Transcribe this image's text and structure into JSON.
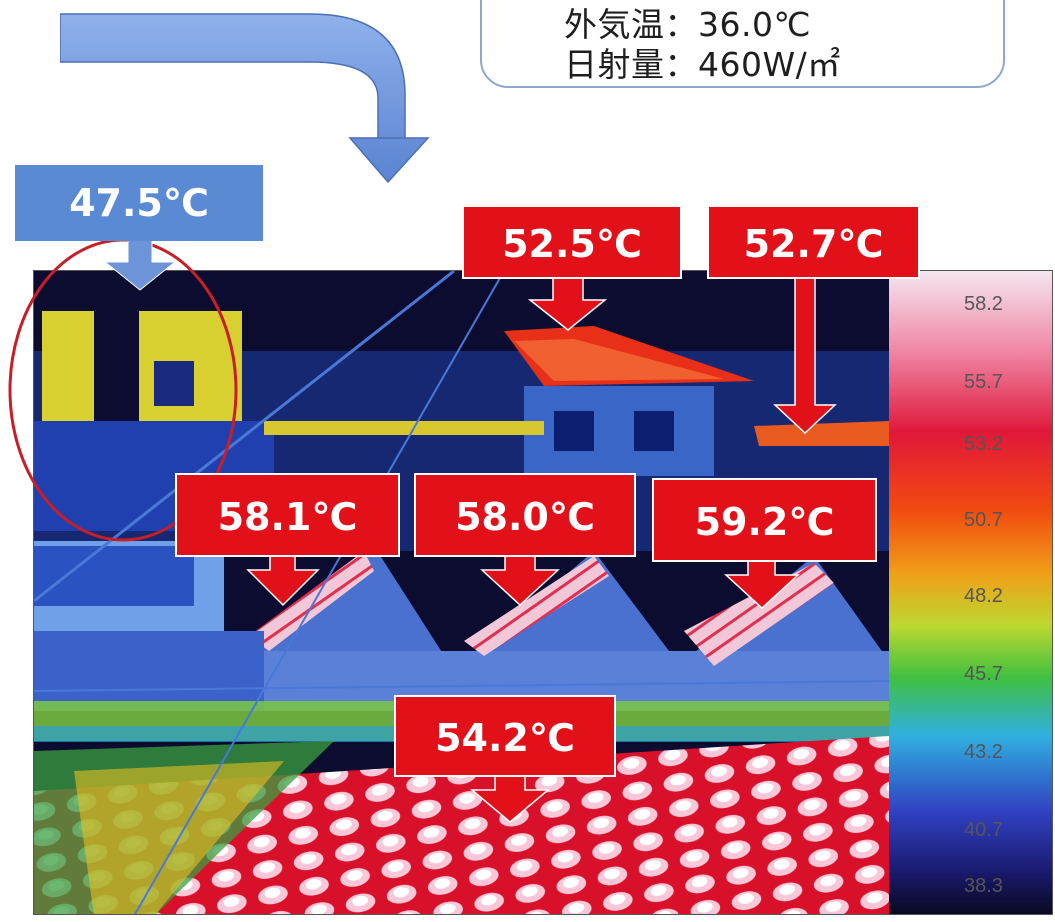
{
  "conditions": {
    "outdoor_temp": "外気温：36.0℃",
    "solar_radiation": "日射量：460W/㎡"
  },
  "callouts": [
    {
      "id": "left-building",
      "value": "47.5℃",
      "color": "blue"
    },
    {
      "id": "roof-top-center",
      "value": "52.5℃",
      "color": "red"
    },
    {
      "id": "roof-top-right",
      "value": "52.7℃",
      "color": "red"
    },
    {
      "id": "roof-mid-left",
      "value": "58.1℃",
      "color": "red"
    },
    {
      "id": "roof-mid-center",
      "value": "58.0℃",
      "color": "red"
    },
    {
      "id": "roof-mid-right",
      "value": "59.2℃",
      "color": "red"
    },
    {
      "id": "roof-foreground",
      "value": "54.2℃",
      "color": "red"
    }
  ],
  "color_scale": {
    "unit": "℃",
    "ticks": [
      "58.2",
      "55.7",
      "53.2",
      "50.7",
      "48.2",
      "45.7",
      "43.2",
      "40.7",
      "38.3"
    ],
    "colors": [
      "#f4e6ef",
      "#f08aa8",
      "#e0183a",
      "#f24a10",
      "#f0a018",
      "#bcd830",
      "#40c040",
      "#30b0e0",
      "#3040c0",
      "#1a1a70",
      "#08081e"
    ]
  },
  "colors": {
    "callout_red": "#e21018",
    "callout_blue": "#5a8ad4",
    "arrow_blue": "#6d93d8",
    "ellipse": "#c81e28"
  }
}
